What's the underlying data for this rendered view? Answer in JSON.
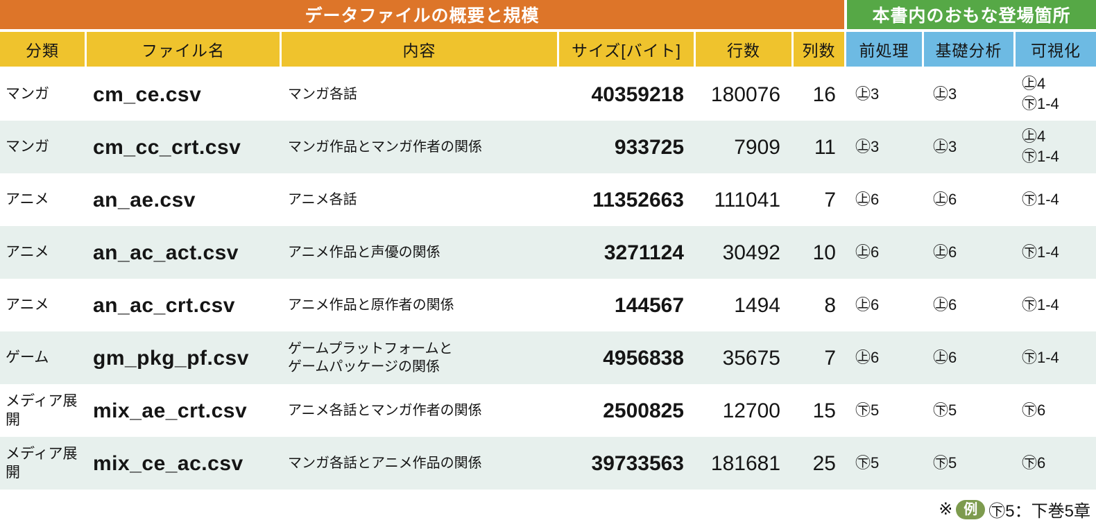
{
  "header": {
    "group_left": "データファイルの概要と規模",
    "group_right": "本書内のおもな登場箇所",
    "columns": [
      "分類",
      "ファイル名",
      "内容",
      "サイズ[バイト]",
      "行数",
      "列数",
      "前処理",
      "基礎分析",
      "可視化"
    ]
  },
  "rows": [
    {
      "category": "マンガ",
      "filename": "cm_ce.csv",
      "description": [
        "マンガ各話"
      ],
      "size": "40359218",
      "line_count": "180076",
      "col_count": "16",
      "preprocess": "㊤3",
      "analysis": "㊤3",
      "visualization": [
        "㊤4",
        "㊦1-4"
      ]
    },
    {
      "category": "マンガ",
      "filename": "cm_cc_crt.csv",
      "description": [
        "マンガ作品とマンガ作者の関係"
      ],
      "size": "933725",
      "line_count": "7909",
      "col_count": "11",
      "preprocess": "㊤3",
      "analysis": "㊤3",
      "visualization": [
        "㊤4",
        "㊦1-4"
      ]
    },
    {
      "category": "アニメ",
      "filename": "an_ae.csv",
      "description": [
        "アニメ各話"
      ],
      "size": "11352663",
      "line_count": "111041",
      "col_count": "7",
      "preprocess": "㊤6",
      "analysis": "㊤6",
      "visualization": [
        "㊦1-4"
      ]
    },
    {
      "category": "アニメ",
      "filename": "an_ac_act.csv",
      "description": [
        "アニメ作品と声優の関係"
      ],
      "size": "3271124",
      "line_count": "30492",
      "col_count": "10",
      "preprocess": "㊤6",
      "analysis": "㊤6",
      "visualization": [
        "㊦1-4"
      ]
    },
    {
      "category": "アニメ",
      "filename": "an_ac_crt.csv",
      "description": [
        "アニメ作品と原作者の関係"
      ],
      "size": "144567",
      "line_count": "1494",
      "col_count": "8",
      "preprocess": "㊤6",
      "analysis": "㊤6",
      "visualization": [
        "㊦1-4"
      ]
    },
    {
      "category": "ゲーム",
      "filename": "gm_pkg_pf.csv",
      "description": [
        "ゲームプラットフォームと",
        "ゲームパッケージの関係"
      ],
      "size": "4956838",
      "line_count": "35675",
      "col_count": "7",
      "preprocess": "㊤6",
      "analysis": "㊤6",
      "visualization": [
        "㊦1-4"
      ]
    },
    {
      "category": "メディア展開",
      "filename": "mix_ae_crt.csv",
      "description": [
        "アニメ各話とマンガ作者の関係"
      ],
      "size": "2500825",
      "line_count": "12700",
      "col_count": "15",
      "preprocess": "㊦5",
      "analysis": "㊦5",
      "visualization": [
        "㊦6"
      ]
    },
    {
      "category": "メディア展開",
      "filename": "mix_ce_ac.csv",
      "description": [
        "マンガ各話とアニメ作品の関係"
      ],
      "size": "39733563",
      "line_count": "181681",
      "col_count": "25",
      "preprocess": "㊦5",
      "analysis": "㊦5",
      "visualization": [
        "㊦6"
      ]
    }
  ],
  "footer": {
    "prefix": "※",
    "badge": "例",
    "note": "㊦5：下巻5章"
  },
  "colors": {
    "group_left_bg": "#DD7529",
    "group_right_bg": "#56A846",
    "header_yellow": "#EFC32D",
    "header_blue": "#6DBAE3",
    "row_alt_bg": "#E7F0ED",
    "badge_bg": "#7D9B4E",
    "text": "#151515"
  }
}
